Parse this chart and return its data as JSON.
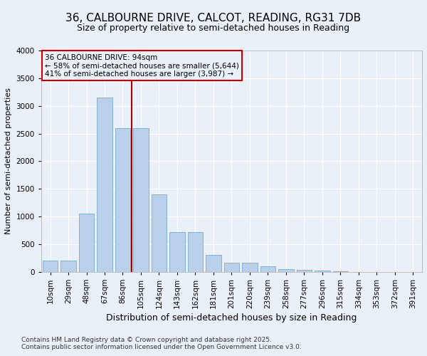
{
  "title_line1": "36, CALBOURNE DRIVE, CALCOT, READING, RG31 7DB",
  "title_line2": "Size of property relative to semi-detached houses in Reading",
  "xlabel": "Distribution of semi-detached houses by size in Reading",
  "ylabel": "Number of semi-detached properties",
  "categories": [
    "10sqm",
    "29sqm",
    "48sqm",
    "67sqm",
    "86sqm",
    "105sqm",
    "124sqm",
    "143sqm",
    "162sqm",
    "181sqm",
    "201sqm",
    "220sqm",
    "239sqm",
    "258sqm",
    "277sqm",
    "296sqm",
    "315sqm",
    "334sqm",
    "353sqm",
    "372sqm",
    "391sqm"
  ],
  "values": [
    200,
    200,
    1050,
    3150,
    2600,
    2600,
    1400,
    720,
    720,
    310,
    170,
    170,
    100,
    50,
    40,
    20,
    10,
    5,
    5,
    5,
    5
  ],
  "bar_color": "#b8d0ea",
  "bar_edge_color": "#7aaace",
  "vline_x_index": 4,
  "vline_color": "#aa0000",
  "annotation_title": "36 CALBOURNE DRIVE: 94sqm",
  "annotation_line1": "← 58% of semi-detached houses are smaller (5,644)",
  "annotation_line2": "41% of semi-detached houses are larger (3,987) →",
  "annotation_box_color": "#cc0000",
  "ylim": [
    0,
    4000
  ],
  "yticks": [
    0,
    500,
    1000,
    1500,
    2000,
    2500,
    3000,
    3500,
    4000
  ],
  "background_color": "#eaf0f8",
  "grid_color": "#ffffff",
  "footer_line1": "Contains HM Land Registry data © Crown copyright and database right 2025.",
  "footer_line2": "Contains public sector information licensed under the Open Government Licence v3.0.",
  "title_fontsize": 11,
  "subtitle_fontsize": 9,
  "ylabel_fontsize": 8,
  "xlabel_fontsize": 9,
  "tick_fontsize": 7.5,
  "footer_fontsize": 6.5
}
